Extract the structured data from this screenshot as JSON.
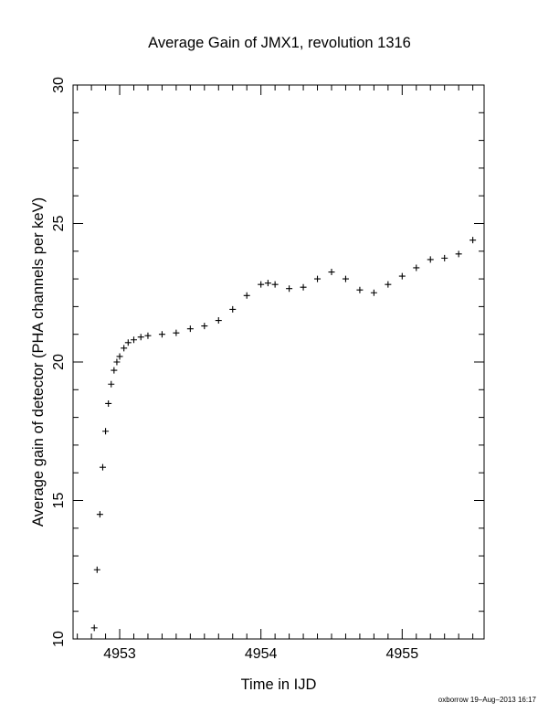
{
  "chart_data": {
    "type": "scatter",
    "title": "Average Gain of JMX1, revolution 1316",
    "xlabel": "Time in IJD",
    "ylabel": "Average gain of detector (PHA channels per keV)",
    "xlim": [
      4952.67,
      4955.58
    ],
    "ylim": [
      10,
      30
    ],
    "xticks": [
      4953,
      4954,
      4955
    ],
    "xtick_labels": [
      "4953",
      "4954",
      "4955"
    ],
    "yticks": [
      10,
      15,
      20,
      25,
      30
    ],
    "ytick_labels": [
      "10",
      "15",
      "20",
      "25",
      "30"
    ],
    "grid": false,
    "marker": "+",
    "series": [
      {
        "x": [
          4952.82,
          4952.84,
          4952.86,
          4952.88,
          4952.9,
          4952.92,
          4952.94,
          4952.96,
          4952.98,
          4953.0,
          4953.03,
          4953.06,
          4953.1,
          4953.15,
          4953.2,
          4953.3,
          4953.4,
          4953.5,
          4953.6,
          4953.7,
          4953.8,
          4953.9,
          4954.0,
          4954.05,
          4954.1,
          4954.2,
          4954.3,
          4954.4,
          4954.5,
          4954.6,
          4954.7,
          4954.8,
          4954.9,
          4955.0,
          4955.1,
          4955.2,
          4955.3,
          4955.4,
          4955.5
        ],
        "y": [
          10.4,
          12.5,
          14.5,
          16.2,
          17.5,
          18.5,
          19.2,
          19.7,
          20.0,
          20.2,
          20.5,
          20.7,
          20.8,
          20.9,
          20.95,
          21.0,
          21.05,
          21.2,
          21.3,
          21.5,
          21.9,
          22.4,
          22.8,
          22.85,
          22.8,
          22.65,
          22.7,
          23.0,
          23.25,
          23.0,
          22.6,
          22.5,
          22.8,
          23.1,
          23.4,
          23.7,
          23.75,
          23.9,
          24.4
        ]
      }
    ],
    "footer": "oxborrow 19–Aug–2013 16:17"
  }
}
